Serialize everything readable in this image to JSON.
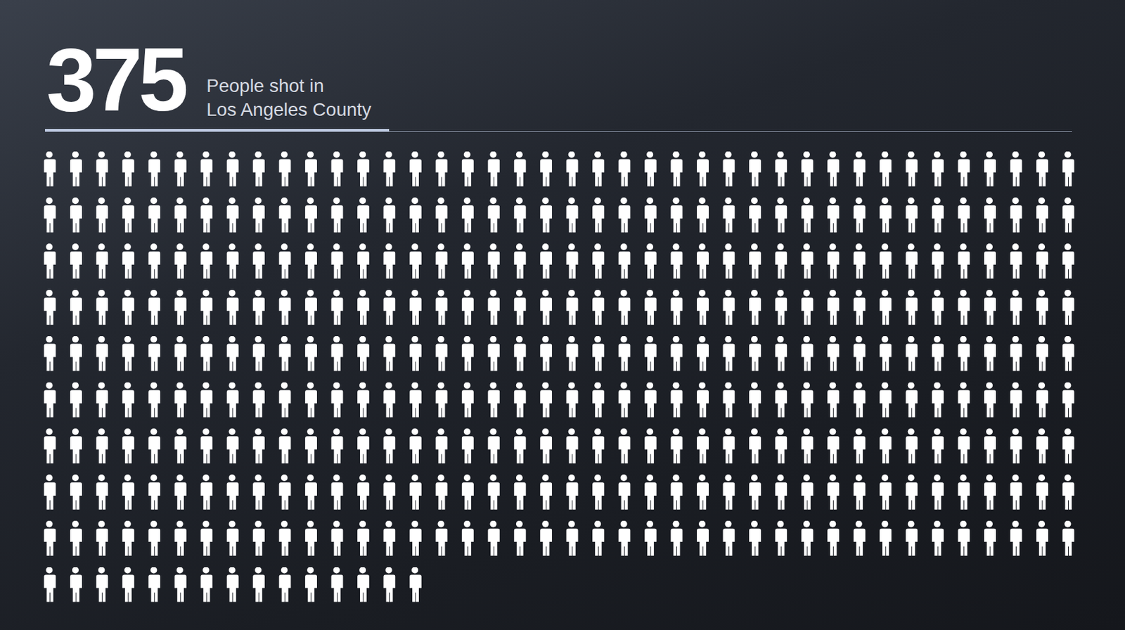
{
  "chart_data": {
    "type": "pictogram",
    "value": 375,
    "subtitle": [
      "People shot in",
      "Los Angeles County"
    ],
    "color": "#ffffff"
  }
}
